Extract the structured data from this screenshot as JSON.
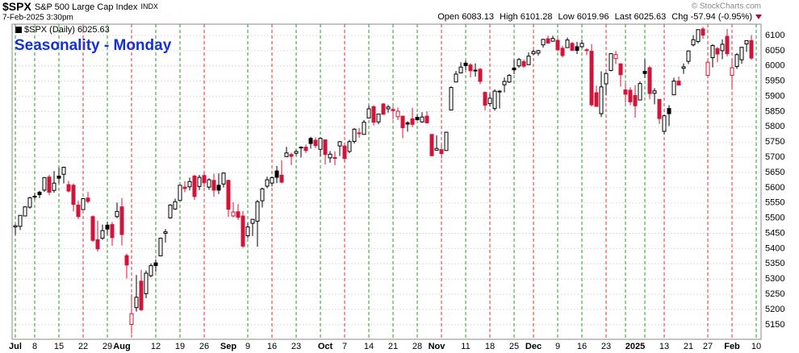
{
  "header": {
    "symbol": "$SPX",
    "name": "S&P 500 Large Cap Index",
    "exchange": "INDX",
    "timestamp": "7-Feb-2025 3:30pm",
    "open_label": "Open",
    "open": 6083.13,
    "high_label": "High",
    "high": 6101.28,
    "low_label": "Low",
    "low": 6019.96,
    "last_label": "Last",
    "last": 6025.63,
    "chg_label": "Chg",
    "chg": -57.94,
    "chg_pct": "(-0.95%)",
    "watermark": "© StockCharts.com"
  },
  "chart_data": {
    "type": "candlestick",
    "title": "Seasonality - Monday",
    "legend": "$SPX (Daily) 6025.63",
    "up_color": "#000000",
    "down_color": "#d2143a",
    "grid": true,
    "ylim": [
      5102,
      6137
    ],
    "yticks": [
      5150,
      5200,
      5250,
      5300,
      5350,
      5400,
      5450,
      5500,
      5550,
      5600,
      5650,
      5700,
      5750,
      5800,
      5850,
      5900,
      5950,
      6000,
      6050,
      6100
    ],
    "categories": [
      "Jul",
      null,
      null,
      null,
      "8",
      null,
      null,
      null,
      null,
      "15",
      null,
      null,
      null,
      null,
      "22",
      null,
      null,
      null,
      null,
      "29",
      null,
      null,
      "Aug",
      null,
      null,
      null,
      null,
      null,
      null,
      "12",
      null,
      null,
      null,
      null,
      "19",
      null,
      null,
      null,
      null,
      "26",
      null,
      null,
      null,
      null,
      "Sep",
      null,
      null,
      null,
      "9",
      null,
      null,
      null,
      null,
      "16",
      null,
      null,
      null,
      null,
      "23",
      null,
      null,
      null,
      null,
      null,
      "Oct",
      null,
      null,
      null,
      "7",
      null,
      null,
      null,
      null,
      "14",
      null,
      null,
      null,
      null,
      "21",
      null,
      null,
      null,
      null,
      "28",
      null,
      null,
      null,
      "Nov",
      null,
      null,
      null,
      null,
      null,
      "11",
      null,
      null,
      null,
      null,
      "18",
      null,
      null,
      null,
      null,
      "25",
      null,
      null,
      null,
      "Dec",
      null,
      null,
      null,
      null,
      "9",
      null,
      null,
      null,
      null,
      "16",
      null,
      null,
      null,
      null,
      "23",
      null,
      null,
      null,
      null,
      null,
      "2025",
      null,
      null,
      null,
      null,
      null,
      "13",
      null,
      null,
      null,
      null,
      "21",
      null,
      null,
      null,
      "27",
      null,
      null,
      null,
      null,
      "Feb",
      null,
      null,
      null,
      null,
      "10"
    ],
    "vlines": [
      "green",
      null,
      null,
      null,
      "green",
      null,
      null,
      null,
      null,
      "green",
      null,
      null,
      null,
      null,
      "red",
      null,
      null,
      null,
      null,
      "green",
      null,
      null,
      null,
      null,
      "red",
      null,
      null,
      null,
      null,
      "green",
      null,
      null,
      null,
      null,
      "green",
      null,
      null,
      null,
      null,
      "red",
      null,
      null,
      null,
      null,
      null,
      null,
      null,
      null,
      "green",
      null,
      null,
      null,
      null,
      "red",
      null,
      null,
      null,
      null,
      "green",
      null,
      null,
      null,
      null,
      "green",
      null,
      null,
      null,
      null,
      "red",
      null,
      null,
      null,
      null,
      "green",
      null,
      null,
      null,
      null,
      "green",
      null,
      null,
      null,
      null,
      "green",
      null,
      null,
      null,
      null,
      "red",
      null,
      null,
      null,
      null,
      "green",
      null,
      null,
      null,
      null,
      "red",
      null,
      null,
      null,
      null,
      "green",
      null,
      null,
      null,
      "red",
      null,
      null,
      null,
      null,
      "green",
      null,
      null,
      null,
      null,
      "green",
      null,
      null,
      null,
      null,
      "red",
      null,
      null,
      null,
      "green",
      null,
      null,
      null,
      "green",
      null,
      null,
      null,
      "red",
      null,
      null,
      null,
      null,
      null,
      null,
      null,
      null,
      "red",
      null,
      null,
      null,
      null,
      "red",
      null,
      null,
      null,
      null,
      "green"
    ],
    "open": [
      5471,
      5473,
      5507,
      5536,
      5572,
      5585,
      5592,
      5635,
      5591,
      5638,
      5644,
      5610,
      5608,
      5543,
      5528,
      5566,
      5505,
      5429,
      5434,
      5477,
      5479,
      5505,
      5537,
      5377,
      5151,
      5206,
      5293,
      5252,
      5311,
      5353,
      5376,
      5450,
      5501,
      5530,
      5558,
      5602,
      5603,
      5638,
      5604,
      5640,
      5602,
      5624,
      5608,
      5612,
      5624,
      5507,
      5521,
      5507,
      5442,
      5483,
      5490,
      5557,
      5605,
      5615,
      5655,
      5641,
      5702,
      5709,
      5713,
      5733,
      5733,
      5762,
      5756,
      5726,
      5757,
      5698,
      5698,
      5737,
      5737,
      5719,
      5752,
      5778,
      5775,
      5829,
      5866,
      5816,
      5875,
      5859,
      5857,
      5833,
      5835,
      5813,
      5826,
      5831,
      5816,
      5835,
      5775,
      5723,
      5725,
      5722,
      5855,
      5947,
      5977,
      6009,
      6003,
      5986,
      5989,
      5913,
      5876,
      5860,
      5917,
      5938,
      5947,
      5993,
      6000,
      6014,
      6004,
      6040,
      6042,
      6069,
      6089,
      6081,
      6084,
      6058,
      6060,
      6074,
      6063,
      6063,
      6053,
      6048,
      5912,
      5843,
      5941,
      5985,
      6024,
      6007,
      5921,
      5920,
      5903,
      5888,
      5982,
      5994,
      5910,
      5890,
      5785,
      5860,
      5905,
      5950,
      5992,
      6015,
      6069,
      6080,
      6121,
      5969,
      6027,
      6057,
      6050,
      6097,
      5969,
      5998,
      6020,
      6072,
      6083.13,
      null
    ],
    "high": [
      5479,
      5510,
      5539,
      5570,
      5583,
      5590,
      5635,
      5642,
      5655,
      5666,
      5669,
      5622,
      5614,
      5557,
      5566,
      5586,
      5509,
      5491,
      5479,
      5488,
      5487,
      5551,
      5566,
      5383,
      5250,
      5313,
      5330,
      5328,
      5351,
      5364,
      5436,
      5464,
      5546,
      5564,
      5609,
      5621,
      5633,
      5643,
      5642,
      5651,
      5631,
      5646,
      5647,
      5650,
      5626,
      5552,
      5546,
      5523,
      5484,
      5497,
      5560,
      5600,
      5636,
      5637,
      5671,
      5690,
      5734,
      5715,
      5725,
      5736,
      5742,
      5767,
      5765,
      5765,
      5758,
      5720,
      5719,
      5753,
      5739,
      5757,
      5796,
      5796,
      5822,
      5871,
      5871,
      5843,
      5878,
      5872,
      5866,
      5863,
      5835,
      5818,
      5862,
      5842,
      5848,
      5851,
      5775,
      5772,
      5741,
      5784,
      5933,
      5983,
      6012,
      6018,
      6009,
      6008,
      5993,
      5916,
      5908,
      5923,
      5920,
      5962,
      5973,
      6021,
      6026,
      6021,
      6044,
      6053,
      6053,
      6089,
      6099,
      6099,
      6089,
      6066,
      6093,
      6079,
      6079,
      6086,
      6058,
      6071,
      5935,
      5982,
      5978,
      6041,
      6049,
      6007,
      5941,
      5930,
      5936,
      5949,
      6022,
      6000,
      5927,
      5890,
      5840,
      5871,
      5961,
      5965,
      6008,
      6051,
      6101,
      6119,
      6128,
      6018,
      6071,
      6062,
      6087,
      6121,
      6022,
      6042,
      6062,
      6084,
      6101.28,
      null
    ],
    "low": [
      5445,
      5461,
      5507,
      5531,
      5562,
      5566,
      5586,
      5576,
      5583,
      5614,
      5614,
      5584,
      5522,
      5497,
      5527,
      5549,
      5422,
      5390,
      5429,
      5444,
      5409,
      5500,
      5410,
      5302,
      5120,
      5193,
      5195,
      5237,
      5306,
      5324,
      5376,
      5420,
      5498,
      5527,
      5557,
      5585,
      5591,
      5560,
      5592,
      5602,
      5593,
      5570,
      5579,
      5601,
      5504,
      5503,
      5494,
      5402,
      5434,
      5441,
      5406,
      5535,
      5598,
      5604,
      5615,
      5615,
      5702,
      5674,
      5705,
      5699,
      5714,
      5728,
      5730,
      5703,
      5676,
      5682,
      5674,
      5704,
      5683,
      5713,
      5745,
      5764,
      5775,
      5829,
      5804,
      5808,
      5840,
      5846,
      5824,
      5822,
      5762,
      5784,
      5799,
      5823,
      5813,
      5811,
      5703,
      5723,
      5696,
      5722,
      5855,
      5947,
      5977,
      5986,
      5962,
      5965,
      5940,
      5854,
      5866,
      5853,
      5860,
      5913,
      5944,
      5973,
      5994,
      5994,
      6003,
      6035,
      6034,
      6060,
      6073,
      6080,
      6048,
      6028,
      6059,
      6051,
      6039,
      6059,
      6035,
      5867,
      5866,
      5832,
      5903,
      5982,
      6006,
      5932,
      5879,
      5871,
      5830,
      5888,
      5960,
      5890,
      5874,
      5809,
      5774,
      5802,
      5904,
      5937,
      5974,
      6006,
      6064,
      6074,
      6089,
      5962,
      5995,
      6012,
      6022,
      6031,
      5923,
      5990,
      6007,
      6046,
      6019.96,
      null
    ],
    "close": [
      5475,
      5509,
      5537,
      5567,
      5572,
      5577,
      5633,
      5585,
      5615,
      5631,
      5667,
      5589,
      5545,
      5505,
      5564,
      5555,
      5427,
      5399,
      5459,
      5464,
      5436,
      5522,
      5446,
      5346,
      5186,
      5240,
      5199,
      5319,
      5344,
      5344,
      5434,
      5455,
      5543,
      5554,
      5608,
      5597,
      5620,
      5571,
      5634,
      5616,
      5626,
      5592,
      5592,
      5648,
      5529,
      5520,
      5503,
      5408,
      5471,
      5496,
      5554,
      5596,
      5626,
      5633,
      5634,
      5618,
      5714,
      5703,
      5719,
      5732,
      5722,
      5745,
      5738,
      5762,
      5709,
      5710,
      5699,
      5751,
      5696,
      5751,
      5792,
      5780,
      5815,
      5859,
      5815,
      5842,
      5841,
      5865,
      5853,
      5851,
      5797,
      5809,
      5808,
      5823,
      5832,
      5813,
      5705,
      5729,
      5712,
      5782,
      5929,
      5973,
      5996,
      6001,
      5984,
      5985,
      5949,
      5871,
      5894,
      5917,
      5917,
      5949,
      5969,
      5987,
      6021,
      5999,
      6032,
      6047,
      6050,
      6087,
      6075,
      6090,
      6053,
      6034,
      6085,
      6051,
      6051,
      6074,
      6051,
      5872,
      5867,
      5931,
      5975,
      6040,
      6037,
      5971,
      5907,
      5882,
      5869,
      5942,
      5975,
      5909,
      5918,
      5827,
      5836,
      5843,
      5950,
      5937,
      5997,
      6049,
      6086,
      6119,
      6101,
      6012,
      6067,
      6039,
      6071,
      6040,
      5994,
      6037,
      6061,
      6083,
      6025.63,
      null
    ]
  }
}
